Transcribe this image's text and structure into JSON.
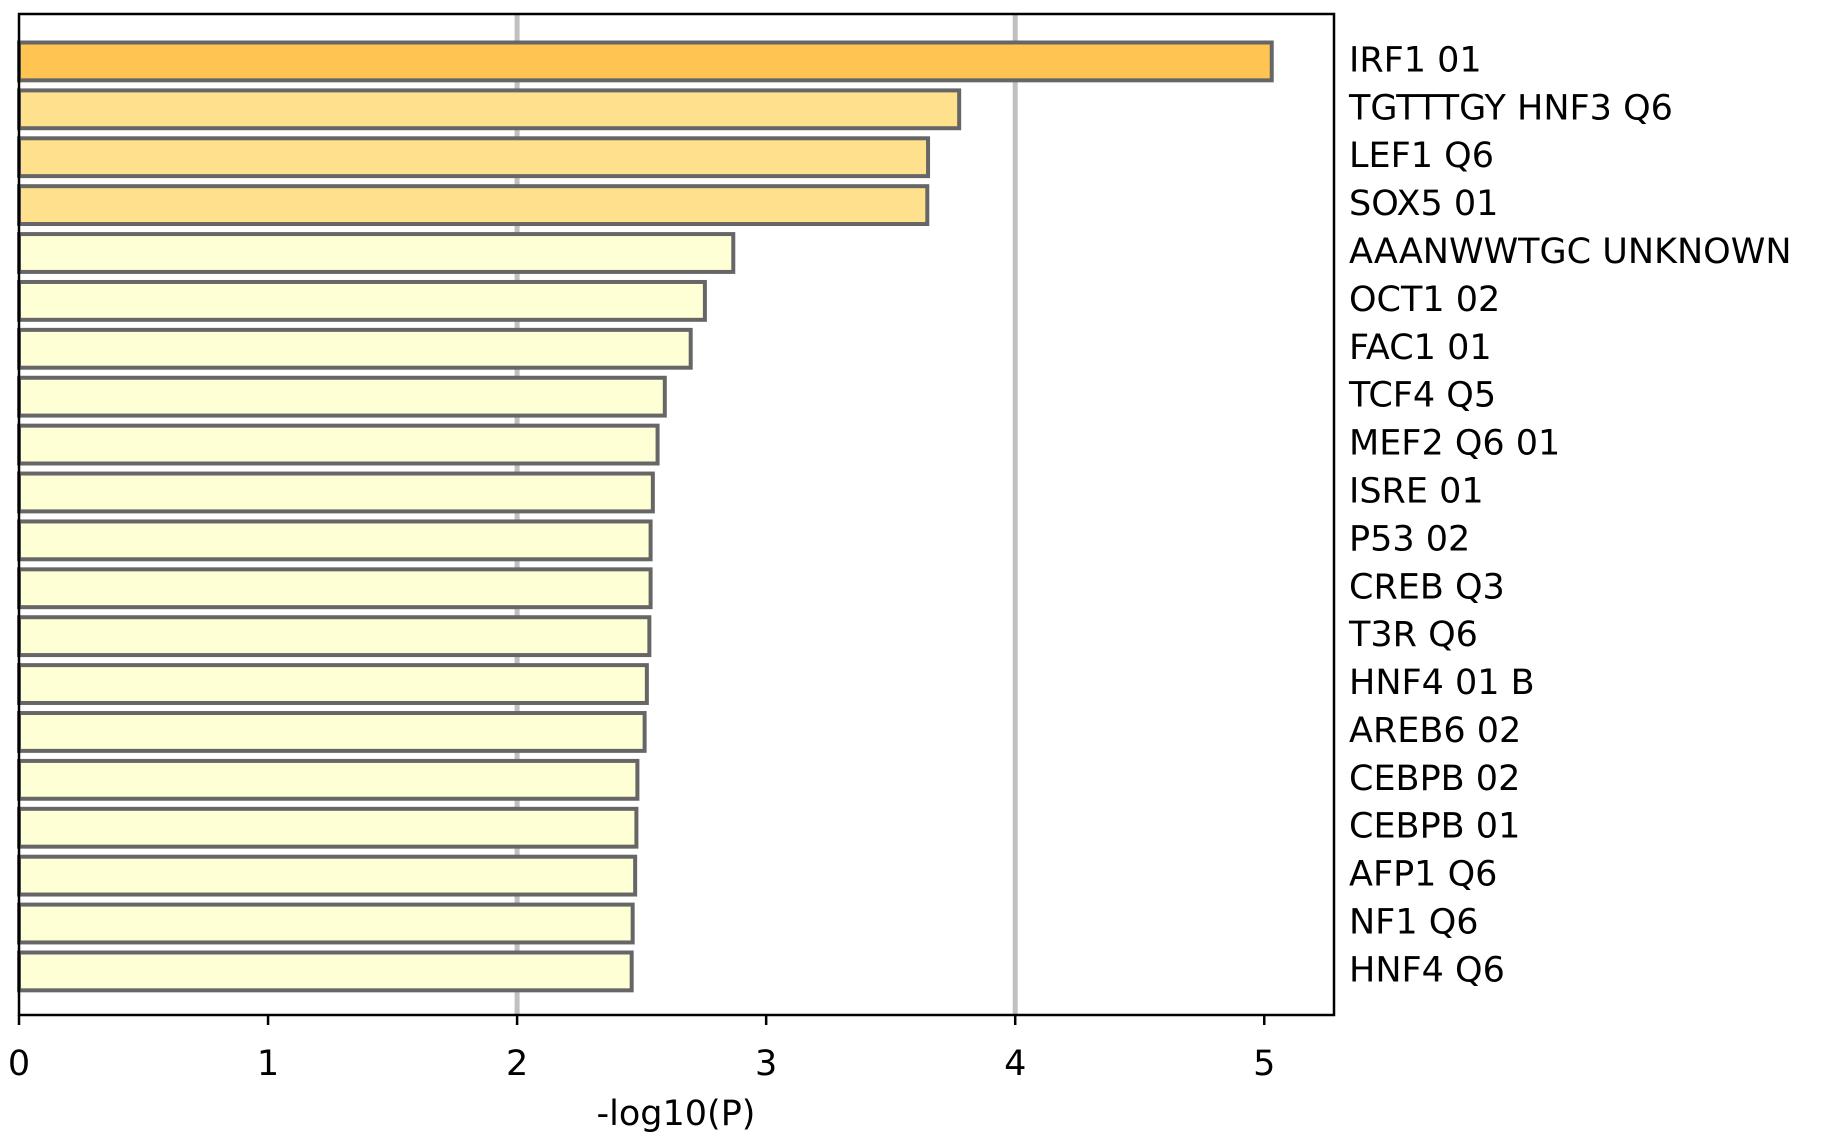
{
  "chart_data": {
    "type": "barh",
    "xlabel": "-log10(P)",
    "categories": [
      "IRF1 01",
      "TGTTTGY HNF3 Q6",
      "LEF1 Q6",
      "SOX5 01",
      "AAANWWTGC UNKNOWN",
      "OCT1 02",
      "FAC1 01",
      "TCF4 Q5",
      "MEF2 Q6 01",
      "ISRE 01",
      "P53 02",
      "CREB Q3",
      "T3R Q6",
      "HNF4 01 B",
      "AREB6 02",
      "CEBPB 02",
      "CEBPB 01",
      "AFP1 Q6",
      "NF1 Q6",
      "HNF4 Q6"
    ],
    "values": [
      5.03,
      3.775,
      3.65,
      3.647,
      2.868,
      2.754,
      2.697,
      2.593,
      2.564,
      2.545,
      2.536,
      2.536,
      2.531,
      2.521,
      2.512,
      2.483,
      2.479,
      2.474,
      2.464,
      2.46
    ],
    "colors": [
      "#ffc451",
      "#ffe08c",
      "#ffe08c",
      "#ffe08c",
      "#ffffd6",
      "#ffffd6",
      "#ffffd6",
      "#ffffd6",
      "#ffffd6",
      "#ffffd6",
      "#ffffd6",
      "#ffffd6",
      "#ffffd6",
      "#ffffd6",
      "#ffffd6",
      "#ffffd6",
      "#ffffd6",
      "#ffffd6",
      "#ffffd6",
      "#ffffd6"
    ],
    "xlim": [
      0,
      5.28
    ],
    "xticks": [
      0,
      1,
      2,
      3,
      4,
      5
    ],
    "vlines": [
      2,
      4
    ]
  }
}
